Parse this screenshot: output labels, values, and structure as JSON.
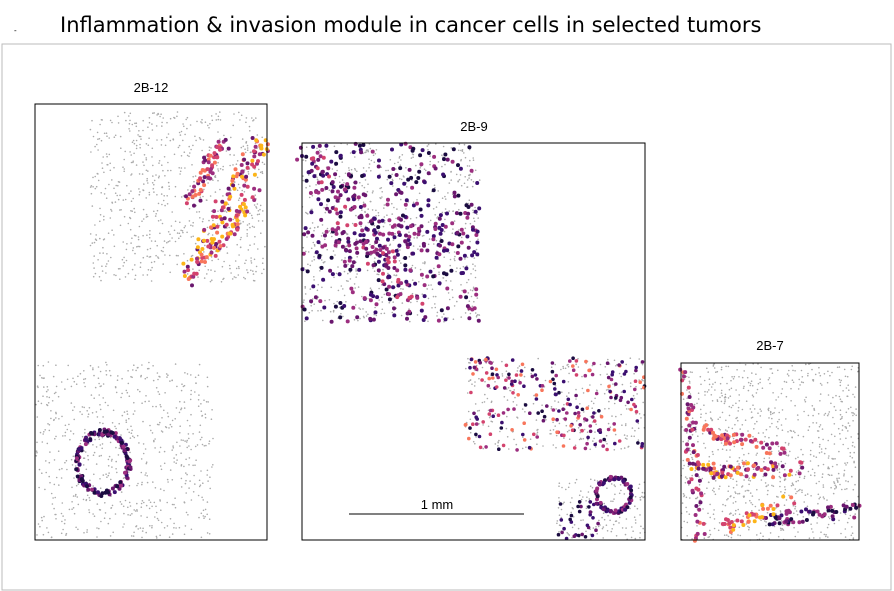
{
  "header": {
    "marker": "-",
    "title": "Inflammation & invasion module in cancer cells in selected tumors"
  },
  "panels": [
    {
      "label": "2B-12"
    },
    {
      "label": "2B-9"
    },
    {
      "label": "2B-7"
    }
  ],
  "scale_bar": {
    "label": "1 mm"
  }
}
